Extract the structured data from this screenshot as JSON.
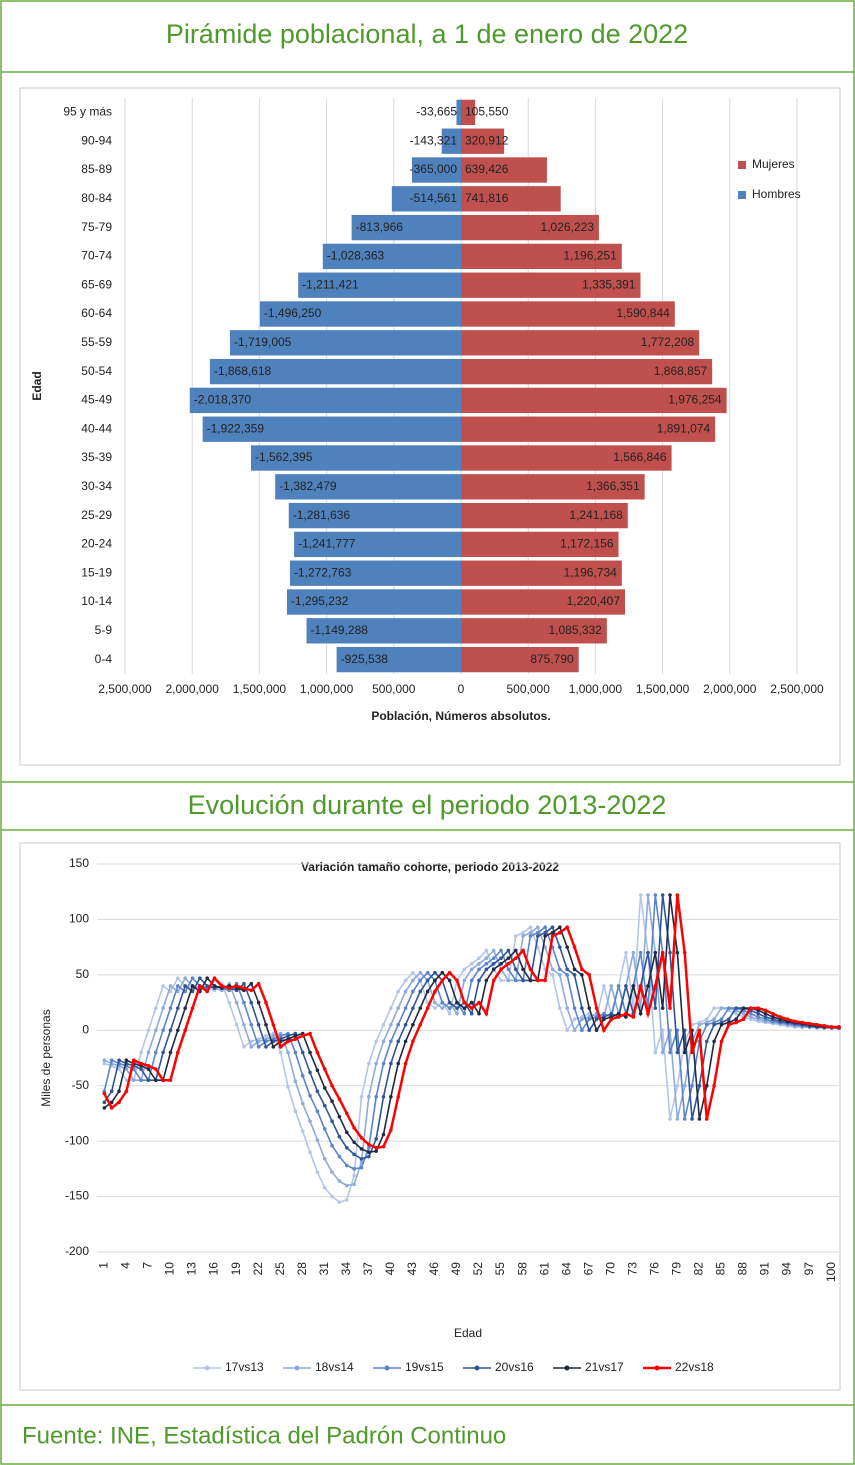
{
  "headings": [
    "Pirámide poblacional, a 1 de enero de 2022",
    "Evolución durante el periodo 2013-2022"
  ],
  "source": "Fuente: INE, Estadística del Padrón Continuo",
  "chart_data": [
    {
      "type": "bar",
      "horizontal": true,
      "xlabel": "Población, Números absolutos.",
      "ylabel": "Edad",
      "categories": [
        "0-4",
        "5-9",
        "10-14",
        "15-19",
        "20-24",
        "25-29",
        "30-34",
        "35-39",
        "40-44",
        "45-49",
        "50-54",
        "55-59",
        "60-64",
        "65-69",
        "70-74",
        "75-79",
        "80-84",
        "85-89",
        "90-94",
        "95 y más"
      ],
      "series": [
        {
          "name": "Mujeres",
          "color": "#c0504d",
          "values": [
            875790,
            1085332,
            1220407,
            1196734,
            1172156,
            1241168,
            1366351,
            1566846,
            1891074,
            1976254,
            1868857,
            1772208,
            1590844,
            1335391,
            1196251,
            1026223,
            741816,
            639426,
            320912,
            105550
          ],
          "value_labels": [
            "875,790",
            "1,085,332",
            "1,220,407",
            "1,196,734",
            "1,172,156",
            "1,241,168",
            "1,366,351",
            "1,566,846",
            "1,891,074",
            "1,976,254",
            "1,868,857",
            "1,772,208",
            "1,590,844",
            "1,335,391",
            "1,196,251",
            "1,026,223",
            "741,816",
            "639,426",
            "320,912",
            "105,550"
          ]
        },
        {
          "name": "Hombres",
          "color": "#4f81bd",
          "values": [
            -925538,
            -1149288,
            -1295232,
            -1272763,
            -1241777,
            -1281636,
            -1382479,
            -1562395,
            -1922359,
            -2018370,
            -1868618,
            -1719005,
            -1496250,
            -1211421,
            -1028363,
            -813966,
            -514561,
            -365000,
            -143321,
            -33665
          ],
          "value_labels": [
            "-925,538",
            "-1,149,288",
            "-1,295,232",
            "-1,272,763",
            "-1,241,777",
            "-1,281,636",
            "-1,382,479",
            "-1,562,395",
            "-1,922,359",
            "-2,018,370",
            "-1,868,618",
            "-1,719,005",
            "-1,496,250",
            "-1,211,421",
            "-1,028,363",
            "-813,966",
            "-514,561",
            "-365,000",
            "-143,321",
            "-33,665"
          ]
        }
      ],
      "xlim": [
        -2500000,
        2500000
      ],
      "xticks": [
        {
          "value": -2500000,
          "label": "2,500,000"
        },
        {
          "value": -2000000,
          "label": "2,000,000"
        },
        {
          "value": -1500000,
          "label": "1,500,000"
        },
        {
          "value": -1000000,
          "label": "1,000,000"
        },
        {
          "value": -500000,
          "label": "500,000"
        },
        0,
        {
          "value": 500000,
          "label": "500,000"
        },
        {
          "value": 1000000,
          "label": "1,000,000"
        },
        {
          "value": 1500000,
          "label": "1,500,000"
        },
        {
          "value": 2000000,
          "label": "2,000,000"
        },
        {
          "value": 2500000,
          "label": "2,500,000"
        }
      ],
      "grid": true,
      "legend": "right"
    },
    {
      "type": "line",
      "title": "Variación tamaño cohorte, periodo 2013-2022",
      "xlabel": "Edad",
      "ylabel": "Miles de personas",
      "x": [
        1,
        2,
        3,
        4,
        5,
        6,
        7,
        8,
        9,
        10,
        11,
        12,
        13,
        14,
        15,
        16,
        17,
        18,
        19,
        20,
        21,
        22,
        23,
        24,
        25,
        26,
        27,
        28,
        29,
        30,
        31,
        32,
        33,
        34,
        35,
        36,
        37,
        38,
        39,
        40,
        41,
        42,
        43,
        44,
        45,
        46,
        47,
        48,
        49,
        50,
        51,
        52,
        53,
        54,
        55,
        56,
        57,
        58,
        59,
        60,
        61,
        62,
        63,
        64,
        65,
        66,
        67,
        68,
        69,
        70,
        71,
        72,
        73,
        74,
        75,
        76,
        77,
        78,
        79,
        80,
        81,
        82,
        83,
        84,
        85,
        86,
        87,
        88,
        89,
        90,
        91,
        92,
        93,
        94,
        95,
        96,
        97,
        98,
        99,
        100,
        101
      ],
      "xlim": [
        0,
        101
      ],
      "xticks": [
        1,
        4,
        7,
        10,
        13,
        16,
        19,
        22,
        25,
        28,
        31,
        34,
        37,
        40,
        43,
        46,
        49,
        52,
        55,
        58,
        61,
        64,
        67,
        70,
        73,
        76,
        79,
        82,
        85,
        88,
        91,
        94,
        97,
        100
      ],
      "ylim": [
        -200,
        150
      ],
      "yticks": [
        -200,
        -150,
        -100,
        -50,
        0,
        50,
        100,
        150
      ],
      "grid": true,
      "legend": "bottom",
      "series": [
        {
          "name": "17vs13",
          "color": "#b4c6e7",
          "values": [
            -30,
            -32,
            -35,
            -45,
            -45,
            -20,
            0,
            20,
            40,
            35,
            47,
            40,
            38,
            40,
            38,
            36,
            42,
            25,
            5,
            -15,
            -10,
            -8,
            -5,
            -3,
            -20,
            -51,
            -73,
            -91,
            -110,
            -128,
            -142,
            -150,
            -155,
            -153,
            -131,
            -60,
            -30,
            -10,
            5,
            20,
            35,
            45,
            52,
            45,
            25,
            20,
            25,
            15,
            45,
            55,
            60,
            65,
            72,
            55,
            45,
            45,
            85,
            88,
            93,
            75,
            55,
            50,
            20,
            0,
            10,
            12,
            15,
            12,
            40,
            15,
            40,
            70,
            20,
            122,
            70,
            -20,
            0,
            -80,
            -50,
            -10,
            5,
            7,
            10,
            20,
            20,
            18,
            15,
            12,
            10,
            8,
            7,
            6,
            5,
            4,
            3,
            3,
            3,
            2,
            2,
            2,
            2
          ]
        },
        {
          "name": "18vs14",
          "color": "#8eaadb",
          "values": [
            -27,
            -30,
            -32,
            -35,
            -45,
            -45,
            -20,
            0,
            20,
            40,
            35,
            47,
            40,
            38,
            40,
            38,
            36,
            42,
            25,
            5,
            -15,
            -10,
            -8,
            -5,
            -3,
            -20,
            -46,
            -66,
            -82,
            -99,
            -116,
            -128,
            -136,
            -140,
            -139,
            -119,
            -60,
            -30,
            -10,
            5,
            20,
            35,
            45,
            52,
            45,
            25,
            20,
            25,
            15,
            45,
            55,
            60,
            65,
            72,
            55,
            45,
            45,
            85,
            88,
            93,
            75,
            55,
            50,
            20,
            0,
            10,
            12,
            15,
            12,
            40,
            15,
            40,
            70,
            20,
            122,
            70,
            -20,
            0,
            -80,
            -50,
            -10,
            5,
            7,
            10,
            20,
            20,
            18,
            15,
            12,
            10,
            8,
            7,
            6,
            5,
            4,
            3,
            3,
            3,
            2,
            2,
            2
          ]
        },
        {
          "name": "19vs15",
          "color": "#5b84c9",
          "values": [
            -55,
            -27,
            -30,
            -32,
            -35,
            -45,
            -45,
            -20,
            0,
            20,
            40,
            35,
            47,
            40,
            38,
            40,
            38,
            36,
            42,
            25,
            5,
            -15,
            -10,
            -8,
            -5,
            -3,
            -20,
            -41,
            -59,
            -73,
            -89,
            -104,
            -114,
            -122,
            -125,
            -124,
            -106,
            -60,
            -30,
            -10,
            5,
            20,
            35,
            45,
            52,
            45,
            25,
            20,
            25,
            15,
            45,
            55,
            60,
            65,
            72,
            55,
            45,
            45,
            85,
            88,
            93,
            75,
            55,
            50,
            20,
            0,
            10,
            12,
            15,
            12,
            40,
            15,
            40,
            70,
            20,
            122,
            70,
            -20,
            0,
            -80,
            -50,
            -10,
            5,
            7,
            10,
            20,
            20,
            18,
            15,
            12,
            10,
            8,
            7,
            6,
            5,
            4,
            3,
            3,
            3,
            2,
            2
          ]
        },
        {
          "name": "20vs16",
          "color": "#2f5597",
          "values": [
            -65,
            -55,
            -27,
            -30,
            -32,
            -35,
            -45,
            -45,
            -20,
            0,
            20,
            40,
            35,
            47,
            40,
            38,
            40,
            38,
            36,
            42,
            25,
            5,
            -15,
            -10,
            -8,
            -5,
            -3,
            -20,
            -38,
            -55,
            -68,
            -82,
            -96,
            -106,
            -112,
            -116,
            -114,
            -98,
            -60,
            -30,
            -10,
            5,
            20,
            35,
            45,
            52,
            45,
            25,
            20,
            25,
            15,
            45,
            55,
            60,
            65,
            72,
            55,
            45,
            45,
            85,
            88,
            93,
            75,
            55,
            50,
            20,
            0,
            10,
            12,
            15,
            12,
            40,
            15,
            40,
            70,
            20,
            122,
            70,
            -20,
            0,
            -80,
            -50,
            -10,
            5,
            7,
            10,
            20,
            20,
            18,
            15,
            12,
            10,
            8,
            7,
            6,
            5,
            4,
            3,
            3,
            3,
            2
          ]
        },
        {
          "name": "21vs17",
          "color": "#1f2a44",
          "values": [
            -70,
            -65,
            -55,
            -27,
            -30,
            -32,
            -35,
            -45,
            -45,
            -20,
            0,
            20,
            40,
            35,
            47,
            40,
            38,
            40,
            38,
            36,
            42,
            25,
            5,
            -15,
            -10,
            -8,
            -5,
            -3,
            -20,
            -36,
            -52,
            -64,
            -78,
            -92,
            -101,
            -107,
            -110,
            -109,
            -94,
            -60,
            -30,
            -10,
            5,
            20,
            35,
            45,
            52,
            45,
            25,
            20,
            25,
            15,
            45,
            55,
            60,
            65,
            72,
            55,
            45,
            45,
            85,
            88,
            93,
            75,
            55,
            50,
            20,
            0,
            10,
            12,
            15,
            12,
            40,
            15,
            40,
            70,
            20,
            122,
            70,
            -20,
            0,
            -80,
            -50,
            -10,
            5,
            7,
            10,
            20,
            20,
            18,
            15,
            12,
            10,
            8,
            7,
            6,
            5,
            4,
            3,
            3,
            3
          ]
        },
        {
          "name": "22vs18",
          "color": "#ff0000",
          "values": [
            -57,
            -70,
            -65,
            -55,
            -27,
            -30,
            -32,
            -35,
            -45,
            -45,
            -20,
            0,
            20,
            40,
            35,
            47,
            40,
            38,
            40,
            38,
            36,
            42,
            25,
            5,
            -15,
            -10,
            -8,
            -5,
            -3,
            -20,
            -35,
            -50,
            -62,
            -75,
            -88,
            -97,
            -103,
            -106,
            -105,
            -90,
            -60,
            -30,
            -10,
            5,
            20,
            35,
            45,
            52,
            45,
            25,
            20,
            25,
            15,
            45,
            55,
            60,
            65,
            72,
            55,
            45,
            45,
            85,
            88,
            93,
            75,
            55,
            50,
            20,
            0,
            10,
            12,
            15,
            12,
            40,
            15,
            40,
            70,
            20,
            122,
            70,
            -20,
            0,
            -80,
            -50,
            -10,
            5,
            7,
            10,
            20,
            20,
            18,
            15,
            12,
            10,
            8,
            7,
            6,
            5,
            4,
            3,
            3
          ]
        }
      ]
    }
  ]
}
